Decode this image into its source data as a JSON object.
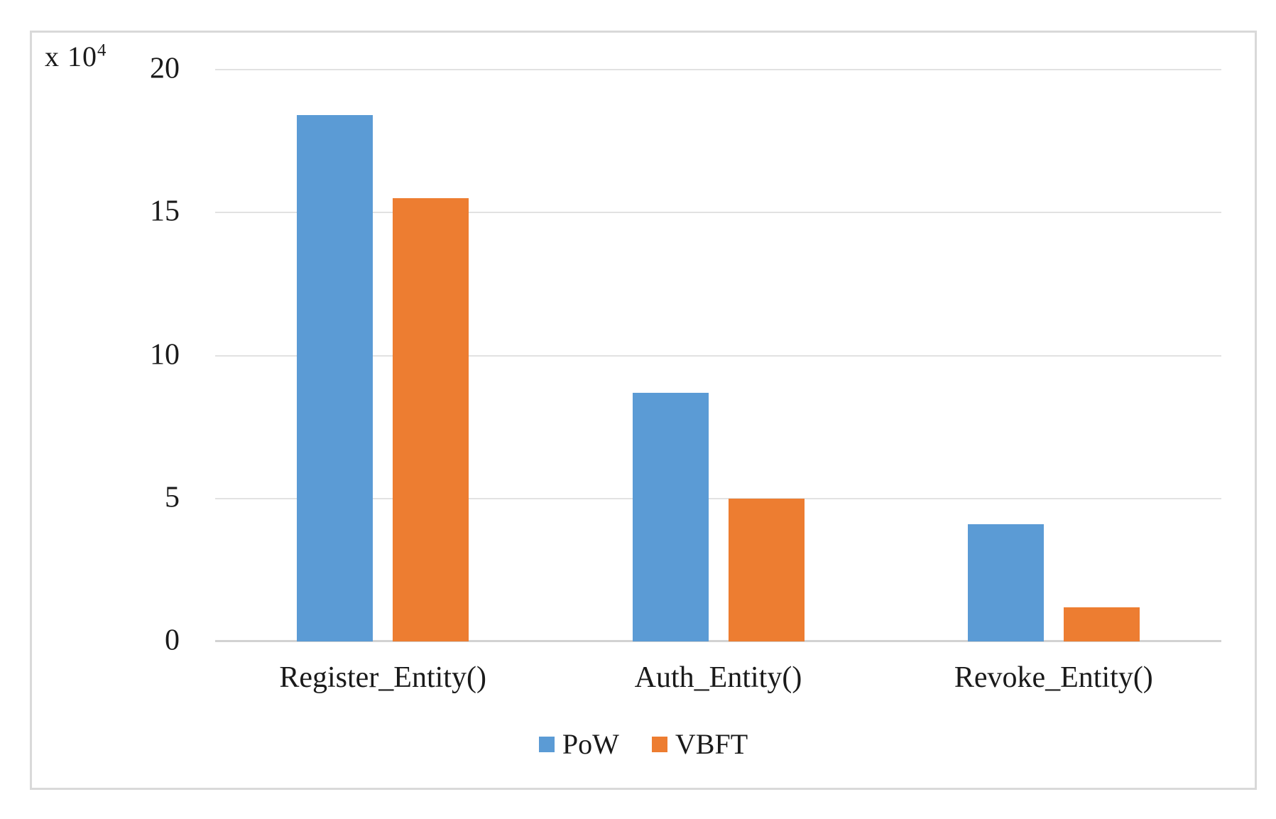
{
  "chart_data": {
    "type": "bar",
    "title": "",
    "xlabel": "",
    "ylabel": "",
    "ylabel_multiplier": {
      "prefix": "x 10",
      "exponent": "4"
    },
    "categories": [
      "Register_Entity()",
      "Auth_Entity()",
      "Revoke_Entity()"
    ],
    "series": [
      {
        "name": "PoW",
        "color": "#5B9BD5",
        "values": [
          18.4,
          8.7,
          4.1
        ]
      },
      {
        "name": "VBFT",
        "color": "#ED7D31",
        "values": [
          15.5,
          5.0,
          1.2
        ]
      }
    ],
    "yticks": [
      0,
      5,
      10,
      15,
      20
    ],
    "ylim": [
      0,
      20
    ],
    "grid": "horizontal",
    "legend_position": "bottom",
    "colors": {
      "gridline": "#e2e2e2",
      "axis_line": "#d2d2d2",
      "frame_border": "#d9d9d9",
      "text": "#1a1a1a"
    }
  }
}
